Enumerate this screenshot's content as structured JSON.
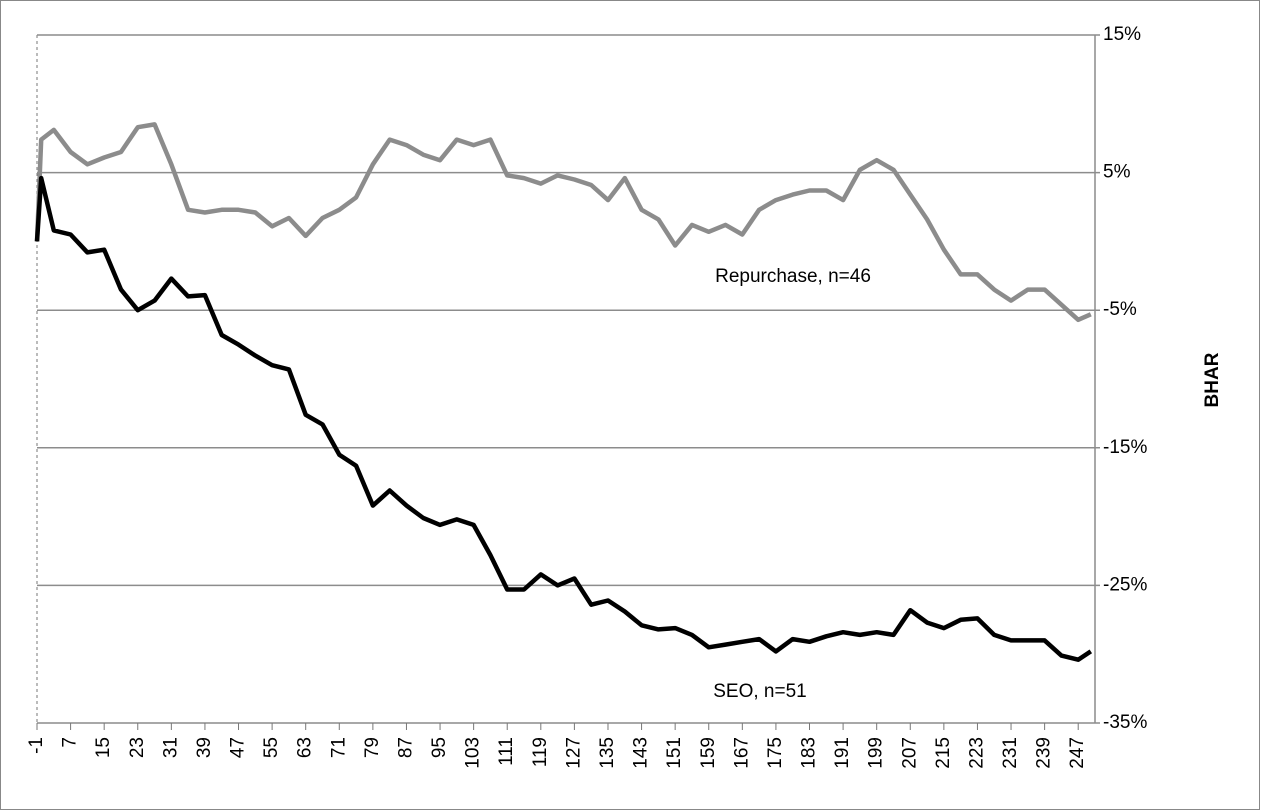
{
  "chart_data": {
    "type": "line",
    "y_label": "BHAR",
    "x": [
      -1,
      0,
      3,
      7,
      11,
      15,
      19,
      23,
      27,
      31,
      35,
      39,
      43,
      47,
      51,
      55,
      59,
      63,
      67,
      71,
      75,
      79,
      83,
      87,
      91,
      95,
      99,
      103,
      107,
      111,
      115,
      119,
      123,
      127,
      131,
      135,
      139,
      143,
      147,
      151,
      155,
      159,
      163,
      167,
      171,
      175,
      179,
      183,
      187,
      191,
      195,
      199,
      203,
      207,
      211,
      215,
      219,
      223,
      227,
      231,
      235,
      239,
      243,
      247,
      250
    ],
    "series": [
      {
        "name": "Repurchase, n=46",
        "color": "#8c8c8c",
        "values": [
          0,
          7.4,
          8.1,
          6.5,
          5.6,
          6.1,
          6.5,
          8.3,
          8.5,
          5.6,
          2.3,
          2.1,
          2.3,
          2.3,
          2.1,
          1.1,
          1.7,
          0.4,
          1.7,
          2.3,
          3.2,
          5.6,
          7.4,
          7.0,
          6.3,
          5.9,
          7.4,
          7.0,
          7.4,
          4.8,
          4.6,
          4.2,
          4.8,
          4.5,
          4.1,
          3.0,
          4.6,
          2.3,
          1.6,
          -0.3,
          1.2,
          0.7,
          1.2,
          0.5,
          2.3,
          3.0,
          3.4,
          3.7,
          3.7,
          3.0,
          5.2,
          5.9,
          5.2,
          3.4,
          1.6,
          -0.6,
          -2.4,
          -2.4,
          -3.5,
          -4.3,
          -3.5,
          -3.5,
          -4.6,
          -5.7,
          -5.3
        ]
      },
      {
        "name": "SEO, n=51",
        "color": "#000000",
        "values": [
          0,
          4.6,
          0.8,
          0.5,
          -0.8,
          -0.6,
          -3.5,
          -5.0,
          -4.3,
          -2.7,
          -4.0,
          -3.9,
          -6.8,
          -7.5,
          -8.3,
          -9.0,
          -9.3,
          -12.6,
          -13.3,
          -15.5,
          -16.3,
          -19.2,
          -18.1,
          -19.2,
          -20.1,
          -20.6,
          -20.2,
          -20.6,
          -22.8,
          -25.3,
          -25.3,
          -24.2,
          -25.0,
          -24.5,
          -26.4,
          -26.1,
          -26.9,
          -27.9,
          -28.2,
          -28.1,
          -28.6,
          -29.5,
          -29.3,
          -29.1,
          -28.9,
          -29.8,
          -28.9,
          -29.1,
          -28.7,
          -28.4,
          -28.6,
          -28.4,
          -28.6,
          -26.8,
          -27.7,
          -28.1,
          -27.5,
          -27.4,
          -28.6,
          -29.0,
          -29.0,
          -29.0,
          -30.1,
          -30.4,
          -29.8
        ]
      }
    ],
    "xlim": [
      -1,
      251
    ],
    "xticks": [
      -1,
      7,
      15,
      23,
      31,
      39,
      47,
      55,
      63,
      71,
      79,
      87,
      95,
      103,
      111,
      119,
      127,
      135,
      143,
      151,
      159,
      167,
      175,
      183,
      191,
      199,
      207,
      215,
      223,
      231,
      239,
      247
    ],
    "ylim": [
      -35,
      15
    ],
    "yticks": [
      {
        "value": 15,
        "label": "15%"
      },
      {
        "value": 5,
        "label": "5%"
      },
      {
        "value": -5,
        "label": "-5%"
      },
      {
        "value": -15,
        "label": "-15%"
      },
      {
        "value": -25,
        "label": "-25%"
      },
      {
        "value": -35,
        "label": "-35%"
      }
    ],
    "grid": true
  }
}
